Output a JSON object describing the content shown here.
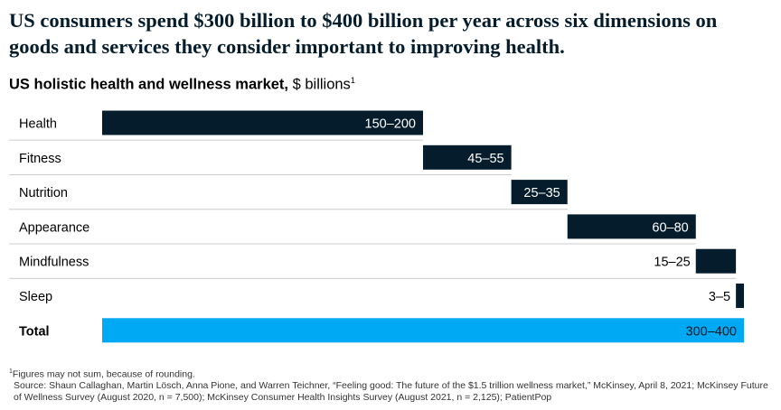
{
  "headline": "US consumers spend $300 billion to $400 billion per year across six dimensions on goods and services they consider important to improving health.",
  "subtitle": {
    "bold": "US holistic health and wellness market,",
    "unit": " $ billions",
    "note_mark": "1"
  },
  "colors": {
    "bar": "#051c2c",
    "total_bar": "#00a9f4",
    "divider": "#cccccc",
    "navy_text": "#051c2c"
  },
  "chart_data": {
    "type": "bar",
    "orientation": "horizontal-waterfall",
    "title": "US holistic health and wellness market, $ billions",
    "categories": [
      "Health",
      "Fitness",
      "Nutrition",
      "Appearance",
      "Mindfulness",
      "Sleep",
      "Total"
    ],
    "ranges": [
      [
        150,
        200
      ],
      [
        45,
        55
      ],
      [
        25,
        35
      ],
      [
        60,
        80
      ],
      [
        15,
        25
      ],
      [
        3,
        5
      ],
      [
        300,
        400
      ]
    ],
    "labels": [
      "150–200",
      "45–55",
      "25–35",
      "60–80",
      "15–25",
      "3–5",
      "300–400"
    ],
    "upper_values": [
      200,
      55,
      35,
      80,
      25,
      5,
      400
    ],
    "start_values": [
      0,
      200,
      255,
      290,
      370,
      395,
      0
    ],
    "total_index": 6,
    "xlim": [
      0,
      400
    ],
    "grid": false,
    "legend": "none"
  },
  "footnotes": {
    "note_mark": "1",
    "note": "Figures may not sum, because of rounding.",
    "source": "Source: Shaun Callaghan, Martin Lösch, Anna Pione, and Warren Teichner, “Feeling good: The future of the $1.5 trillion wellness market,” McKinsey, April 8, 2021; McKinsey Future of Wellness Survey (August 2020, n = 7,500); McKinsey Consumer Health Insights Survey (August 2021, n = 2,125); PatientPop"
  }
}
